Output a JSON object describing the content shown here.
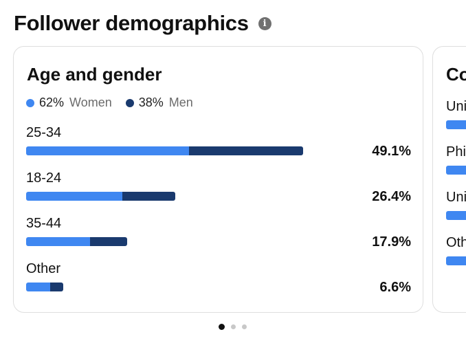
{
  "header": {
    "title": "Follower demographics",
    "info_icon": "i"
  },
  "colors": {
    "women": "#3f87f1",
    "men": "#1a3a6e"
  },
  "age_gender": {
    "title": "Age and gender",
    "legend": {
      "women_pct": "62%",
      "women_label": "Women",
      "men_pct": "38%",
      "men_label": "Men"
    },
    "rows": [
      {
        "label": "25-34",
        "value": "49.1%",
        "women_fraction": 0.587,
        "total_fraction": 1.0
      },
      {
        "label": "18-24",
        "value": "26.4%",
        "women_fraction": 0.647,
        "total_fraction": 0.538
      },
      {
        "label": "35-44",
        "value": "17.9%",
        "women_fraction": 0.635,
        "total_fraction": 0.364
      },
      {
        "label": "Other",
        "value": "6.6%",
        "women_fraction": 0.648,
        "total_fraction": 0.134
      }
    ]
  },
  "next_card": {
    "title_partial": "Co",
    "rows": [
      {
        "label_partial": "Uni"
      },
      {
        "label_partial": "Phi"
      },
      {
        "label_partial": "Uni"
      },
      {
        "label_partial": "Oth"
      }
    ]
  },
  "pagination": {
    "count": 3,
    "active_index": 0
  }
}
